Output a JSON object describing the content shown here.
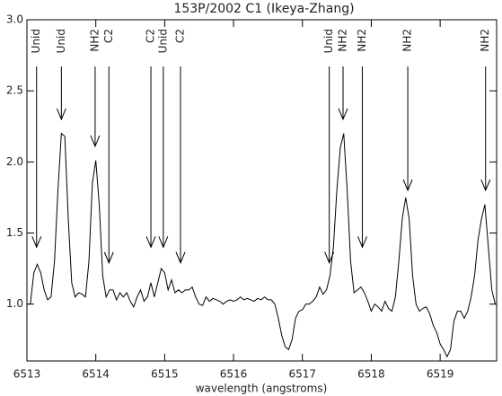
{
  "chart_data": {
    "type": "line",
    "title": "153P/2002 C1 (Ikeya-Zhang)",
    "x_label": "wavelength (angstroms)",
    "color": "#000000",
    "xlim": [
      6513,
      6519.82
    ],
    "ylim": [
      0.6,
      3.0
    ],
    "xticks": [
      6513,
      6514,
      6515,
      6516,
      6517,
      6518,
      6519
    ],
    "yticks": [
      {
        "value": 1,
        "label": "1.0"
      },
      {
        "value": 1.5,
        "label": "1.5"
      },
      {
        "value": 2,
        "label": "2.0"
      },
      {
        "value": 2.5,
        "label": "2.5"
      },
      {
        "value": 3,
        "label": "3.0"
      }
    ],
    "x": [
      6513.0,
      6513.05,
      6513.1,
      6513.15,
      6513.2,
      6513.25,
      6513.3,
      6513.35,
      6513.4,
      6513.45,
      6513.5,
      6513.55,
      6513.6,
      6513.65,
      6513.7,
      6513.75,
      6513.8,
      6513.85,
      6513.9,
      6513.95,
      6514.0,
      6514.05,
      6514.1,
      6514.15,
      6514.2,
      6514.25,
      6514.3,
      6514.35,
      6514.4,
      6514.45,
      6514.5,
      6514.55,
      6514.6,
      6514.65,
      6514.7,
      6514.75,
      6514.8,
      6514.85,
      6514.9,
      6514.95,
      6515.0,
      6515.05,
      6515.1,
      6515.15,
      6515.2,
      6515.25,
      6515.3,
      6515.35,
      6515.4,
      6515.45,
      6515.5,
      6515.55,
      6515.6,
      6515.65,
      6515.7,
      6515.75,
      6515.8,
      6515.85,
      6515.9,
      6515.95,
      6516.0,
      6516.05,
      6516.1,
      6516.15,
      6516.2,
      6516.25,
      6516.3,
      6516.35,
      6516.4,
      6516.45,
      6516.5,
      6516.55,
      6516.6,
      6516.65,
      6516.7,
      6516.75,
      6516.8,
      6516.85,
      6516.9,
      6516.95,
      6517.0,
      6517.05,
      6517.1,
      6517.15,
      6517.2,
      6517.25,
      6517.3,
      6517.35,
      6517.4,
      6517.45,
      6517.5,
      6517.55,
      6517.6,
      6517.65,
      6517.7,
      6517.75,
      6517.8,
      6517.85,
      6517.9,
      6517.95,
      6518.0,
      6518.05,
      6518.1,
      6518.15,
      6518.2,
      6518.25,
      6518.3,
      6518.35,
      6518.4,
      6518.45,
      6518.5,
      6518.55,
      6518.6,
      6518.65,
      6518.7,
      6518.75,
      6518.8,
      6518.85,
      6518.9,
      6518.95,
      6519.0,
      6519.05,
      6519.1,
      6519.15,
      6519.2,
      6519.25,
      6519.3,
      6519.35,
      6519.4,
      6519.45,
      6519.5,
      6519.55,
      6519.6,
      6519.65,
      6519.7,
      6519.75,
      6519.8
    ],
    "values": [
      1.0,
      1.0,
      1.22,
      1.28,
      1.22,
      1.1,
      1.03,
      1.05,
      1.3,
      1.8,
      2.2,
      2.18,
      1.6,
      1.15,
      1.05,
      1.08,
      1.07,
      1.05,
      1.3,
      1.85,
      2.01,
      1.7,
      1.2,
      1.05,
      1.1,
      1.1,
      1.03,
      1.08,
      1.05,
      1.08,
      1.02,
      0.98,
      1.05,
      1.1,
      1.02,
      1.05,
      1.15,
      1.05,
      1.15,
      1.25,
      1.22,
      1.1,
      1.17,
      1.08,
      1.1,
      1.08,
      1.1,
      1.1,
      1.12,
      1.05,
      1.0,
      0.99,
      1.05,
      1.02,
      1.04,
      1.03,
      1.02,
      1.0,
      1.02,
      1.03,
      1.02,
      1.03,
      1.05,
      1.03,
      1.04,
      1.03,
      1.02,
      1.04,
      1.03,
      1.05,
      1.03,
      1.03,
      1.0,
      0.9,
      0.78,
      0.7,
      0.68,
      0.75,
      0.9,
      0.95,
      0.96,
      1.0,
      1.0,
      1.02,
      1.05,
      1.12,
      1.07,
      1.1,
      1.2,
      1.4,
      1.8,
      2.1,
      2.2,
      1.8,
      1.3,
      1.08,
      1.1,
      1.12,
      1.08,
      1.02,
      0.95,
      1.0,
      0.98,
      0.95,
      1.02,
      0.97,
      0.95,
      1.05,
      1.3,
      1.6,
      1.75,
      1.6,
      1.2,
      1.0,
      0.95,
      0.97,
      0.98,
      0.93,
      0.85,
      0.8,
      0.72,
      0.68,
      0.63,
      0.68,
      0.88,
      0.95,
      0.95,
      0.9,
      0.95,
      1.05,
      1.2,
      1.45,
      1.6,
      1.7,
      1.4,
      1.1,
      1.0
    ],
    "annotations": [
      {
        "label": "Unid",
        "x": 6513.14,
        "y": 1.4
      },
      {
        "label": "Unid",
        "x": 6513.5,
        "y": 2.3
      },
      {
        "label": "NH2",
        "x": 6513.99,
        "y": 2.11
      },
      {
        "label": "C2",
        "x": 6514.19,
        "y": 1.29
      },
      {
        "label": "C2",
        "x": 6514.8,
        "y": 1.4
      },
      {
        "label": "Unid",
        "x": 6514.98,
        "y": 1.4
      },
      {
        "label": "C2",
        "x": 6515.23,
        "y": 1.29
      },
      {
        "label": "Unid",
        "x": 6517.39,
        "y": 1.29
      },
      {
        "label": "NH2",
        "x": 6517.59,
        "y": 2.3
      },
      {
        "label": "NH2",
        "x": 6517.87,
        "y": 1.4
      },
      {
        "label": "NH2",
        "x": 6518.53,
        "y": 1.8
      },
      {
        "label": "NH2",
        "x": 6519.66,
        "y": 1.8
      }
    ]
  }
}
